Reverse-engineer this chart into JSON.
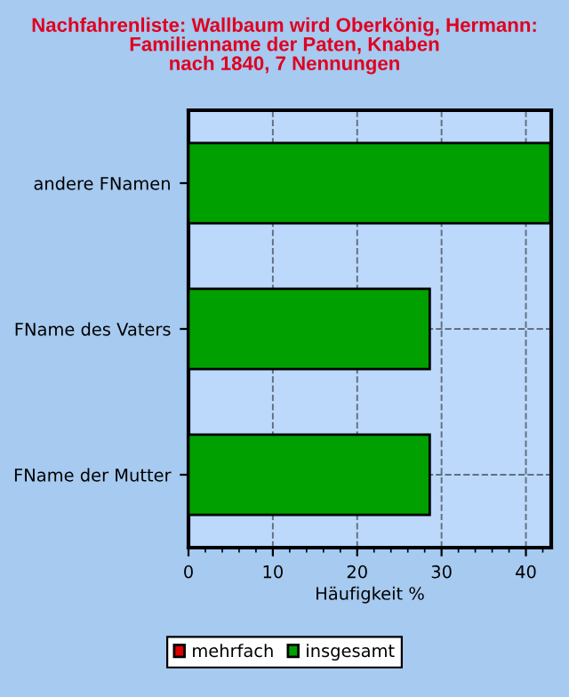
{
  "chart_data": {
    "type": "bar",
    "orientation": "horizontal",
    "title": "Nachfahrenliste: Wallbaum wird Oberkönig, Hermann:\nFamilienname der Paten, Knaben\nnach 1840, 7 Nennungen",
    "xlabel": "Häufigkeit %",
    "categories": [
      "andere FNamen",
      "FName des Vaters",
      "FName der Mutter"
    ],
    "series": [
      {
        "name": "mehrfach",
        "color": "#e00000",
        "values": [
          null,
          null,
          null
        ]
      },
      {
        "name": "insgesamt",
        "color": "#00a000",
        "values": [
          42.9,
          28.6,
          28.6
        ]
      }
    ],
    "xlim": [
      0,
      43
    ],
    "xticks": [
      0,
      10,
      20,
      30,
      40
    ],
    "grid": true,
    "legend": "bottom"
  }
}
